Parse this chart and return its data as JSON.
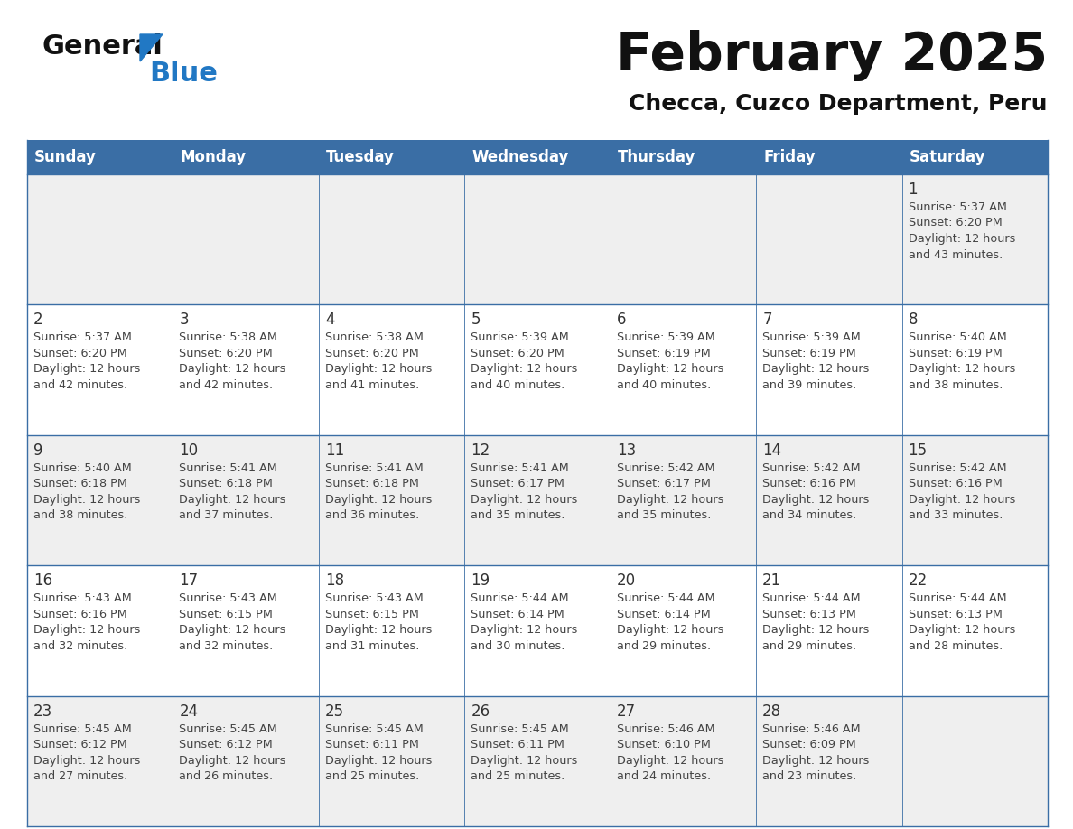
{
  "title": "February 2025",
  "subtitle": "Checca, Cuzco Department, Peru",
  "days_of_week": [
    "Sunday",
    "Monday",
    "Tuesday",
    "Wednesday",
    "Thursday",
    "Friday",
    "Saturday"
  ],
  "header_bg": "#3a6ea5",
  "header_text": "#ffffff",
  "cell_bg_odd": "#efefef",
  "cell_bg_even": "#ffffff",
  "border_color": "#3a6ea5",
  "text_color": "#444444",
  "day_num_color": "#333333",
  "calendar_data": [
    [
      null,
      null,
      null,
      null,
      null,
      null,
      {
        "day": 1,
        "sunrise": "5:37 AM",
        "sunset": "6:20 PM",
        "daylight_line1": "12 hours",
        "daylight_line2": "and 43 minutes."
      }
    ],
    [
      {
        "day": 2,
        "sunrise": "5:37 AM",
        "sunset": "6:20 PM",
        "daylight_line1": "12 hours",
        "daylight_line2": "and 42 minutes."
      },
      {
        "day": 3,
        "sunrise": "5:38 AM",
        "sunset": "6:20 PM",
        "daylight_line1": "12 hours",
        "daylight_line2": "and 42 minutes."
      },
      {
        "day": 4,
        "sunrise": "5:38 AM",
        "sunset": "6:20 PM",
        "daylight_line1": "12 hours",
        "daylight_line2": "and 41 minutes."
      },
      {
        "day": 5,
        "sunrise": "5:39 AM",
        "sunset": "6:20 PM",
        "daylight_line1": "12 hours",
        "daylight_line2": "and 40 minutes."
      },
      {
        "day": 6,
        "sunrise": "5:39 AM",
        "sunset": "6:19 PM",
        "daylight_line1": "12 hours",
        "daylight_line2": "and 40 minutes."
      },
      {
        "day": 7,
        "sunrise": "5:39 AM",
        "sunset": "6:19 PM",
        "daylight_line1": "12 hours",
        "daylight_line2": "and 39 minutes."
      },
      {
        "day": 8,
        "sunrise": "5:40 AM",
        "sunset": "6:19 PM",
        "daylight_line1": "12 hours",
        "daylight_line2": "and 38 minutes."
      }
    ],
    [
      {
        "day": 9,
        "sunrise": "5:40 AM",
        "sunset": "6:18 PM",
        "daylight_line1": "12 hours",
        "daylight_line2": "and 38 minutes."
      },
      {
        "day": 10,
        "sunrise": "5:41 AM",
        "sunset": "6:18 PM",
        "daylight_line1": "12 hours",
        "daylight_line2": "and 37 minutes."
      },
      {
        "day": 11,
        "sunrise": "5:41 AM",
        "sunset": "6:18 PM",
        "daylight_line1": "12 hours",
        "daylight_line2": "and 36 minutes."
      },
      {
        "day": 12,
        "sunrise": "5:41 AM",
        "sunset": "6:17 PM",
        "daylight_line1": "12 hours",
        "daylight_line2": "and 35 minutes."
      },
      {
        "day": 13,
        "sunrise": "5:42 AM",
        "sunset": "6:17 PM",
        "daylight_line1": "12 hours",
        "daylight_line2": "and 35 minutes."
      },
      {
        "day": 14,
        "sunrise": "5:42 AM",
        "sunset": "6:16 PM",
        "daylight_line1": "12 hours",
        "daylight_line2": "and 34 minutes."
      },
      {
        "day": 15,
        "sunrise": "5:42 AM",
        "sunset": "6:16 PM",
        "daylight_line1": "12 hours",
        "daylight_line2": "and 33 minutes."
      }
    ],
    [
      {
        "day": 16,
        "sunrise": "5:43 AM",
        "sunset": "6:16 PM",
        "daylight_line1": "12 hours",
        "daylight_line2": "and 32 minutes."
      },
      {
        "day": 17,
        "sunrise": "5:43 AM",
        "sunset": "6:15 PM",
        "daylight_line1": "12 hours",
        "daylight_line2": "and 32 minutes."
      },
      {
        "day": 18,
        "sunrise": "5:43 AM",
        "sunset": "6:15 PM",
        "daylight_line1": "12 hours",
        "daylight_line2": "and 31 minutes."
      },
      {
        "day": 19,
        "sunrise": "5:44 AM",
        "sunset": "6:14 PM",
        "daylight_line1": "12 hours",
        "daylight_line2": "and 30 minutes."
      },
      {
        "day": 20,
        "sunrise": "5:44 AM",
        "sunset": "6:14 PM",
        "daylight_line1": "12 hours",
        "daylight_line2": "and 29 minutes."
      },
      {
        "day": 21,
        "sunrise": "5:44 AM",
        "sunset": "6:13 PM",
        "daylight_line1": "12 hours",
        "daylight_line2": "and 29 minutes."
      },
      {
        "day": 22,
        "sunrise": "5:44 AM",
        "sunset": "6:13 PM",
        "daylight_line1": "12 hours",
        "daylight_line2": "and 28 minutes."
      }
    ],
    [
      {
        "day": 23,
        "sunrise": "5:45 AM",
        "sunset": "6:12 PM",
        "daylight_line1": "12 hours",
        "daylight_line2": "and 27 minutes."
      },
      {
        "day": 24,
        "sunrise": "5:45 AM",
        "sunset": "6:12 PM",
        "daylight_line1": "12 hours",
        "daylight_line2": "and 26 minutes."
      },
      {
        "day": 25,
        "sunrise": "5:45 AM",
        "sunset": "6:11 PM",
        "daylight_line1": "12 hours",
        "daylight_line2": "and 25 minutes."
      },
      {
        "day": 26,
        "sunrise": "5:45 AM",
        "sunset": "6:11 PM",
        "daylight_line1": "12 hours",
        "daylight_line2": "and 25 minutes."
      },
      {
        "day": 27,
        "sunrise": "5:46 AM",
        "sunset": "6:10 PM",
        "daylight_line1": "12 hours",
        "daylight_line2": "and 24 minutes."
      },
      {
        "day": 28,
        "sunrise": "5:46 AM",
        "sunset": "6:09 PM",
        "daylight_line1": "12 hours",
        "daylight_line2": "and 23 minutes."
      },
      null
    ]
  ],
  "logo_color_general": "#111111",
  "logo_color_blue": "#2178c4",
  "logo_triangle_color": "#2178c4"
}
